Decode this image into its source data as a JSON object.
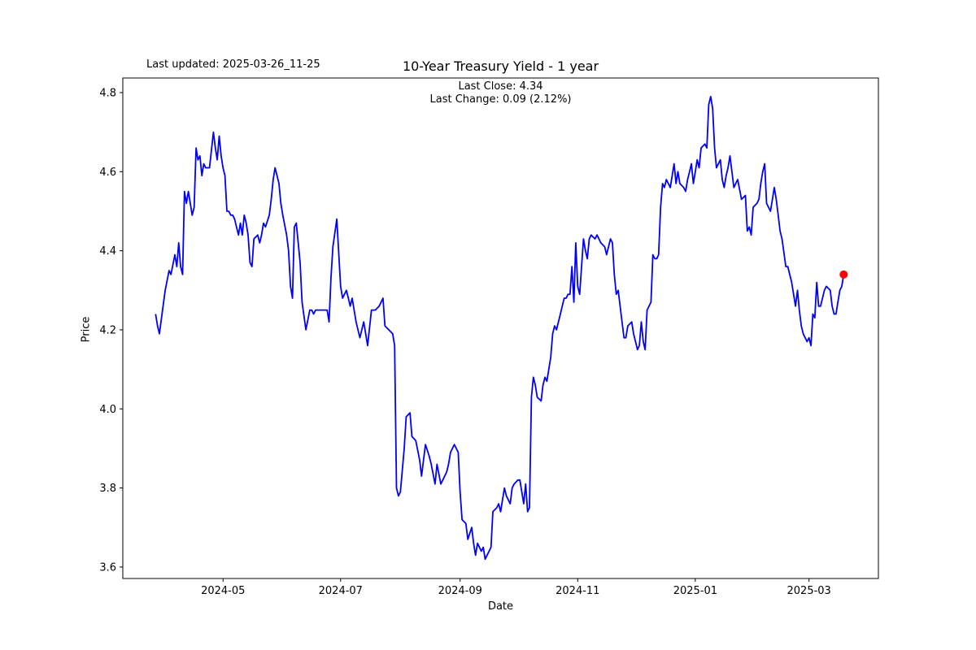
{
  "header": {
    "last_updated": "Last updated: 2025-03-26_11-25",
    "title": "10-Year Treasury Yield - 1 year",
    "subtitle_line1": "Last Close: 4.34",
    "subtitle_line2": "Last Change: 0.09 (2.12%)"
  },
  "chart_data": {
    "type": "line",
    "title": "10-Year Treasury Yield - 1 year",
    "annotation": "Last updated: 2025-03-26_11-25",
    "subtitle": [
      "Last Close: 4.34",
      "Last Change: 0.09 (2.12%)"
    ],
    "xlabel": "Date",
    "ylabel": "Price",
    "last_close": 4.34,
    "last_change": "0.09 (2.12%)",
    "line_color": "#0000ff",
    "marker_color": "#ff0000",
    "frame_color": "#000000",
    "grid": false,
    "ylim": [
      3.571,
      4.837
    ],
    "y_ticks": [
      3.6,
      3.8,
      4.0,
      4.2,
      4.4,
      4.6,
      4.8
    ],
    "y_tick_labels": [
      "3.6",
      "3.8",
      "4.0",
      "4.2",
      "4.4",
      "4.6",
      "4.8"
    ],
    "xlim_days": [
      -17,
      375
    ],
    "x_tick_days": [
      35,
      96,
      158,
      219,
      280,
      339
    ],
    "x_tick_labels": [
      "2024-05",
      "2024-07",
      "2024-09",
      "2024-11",
      "2025-01",
      "2025-03"
    ],
    "x_start_date": "2024-03-27",
    "series": [
      {
        "name": "10-Year Treasury Yield",
        "points": [
          [
            0,
            4.24
          ],
          [
            1,
            4.21
          ],
          [
            2,
            4.19
          ],
          [
            5,
            4.3
          ],
          [
            7,
            4.35
          ],
          [
            8,
            4.34
          ],
          [
            10,
            4.39
          ],
          [
            11,
            4.36
          ],
          [
            12,
            4.42
          ],
          [
            13,
            4.36
          ],
          [
            14,
            4.34
          ],
          [
            15,
            4.55
          ],
          [
            16,
            4.52
          ],
          [
            17,
            4.55
          ],
          [
            19,
            4.49
          ],
          [
            20,
            4.51
          ],
          [
            21,
            4.66
          ],
          [
            22,
            4.63
          ],
          [
            23,
            4.64
          ],
          [
            24,
            4.59
          ],
          [
            25,
            4.62
          ],
          [
            26,
            4.61
          ],
          [
            27,
            4.61
          ],
          [
            28,
            4.61
          ],
          [
            30,
            4.7
          ],
          [
            31,
            4.66
          ],
          [
            32,
            4.63
          ],
          [
            33,
            4.69
          ],
          [
            34,
            4.64
          ],
          [
            35,
            4.61
          ],
          [
            36,
            4.59
          ],
          [
            37,
            4.5
          ],
          [
            38,
            4.5
          ],
          [
            39,
            4.49
          ],
          [
            40,
            4.49
          ],
          [
            41,
            4.48
          ],
          [
            42,
            4.46
          ],
          [
            43,
            4.44
          ],
          [
            44,
            4.47
          ],
          [
            45,
            4.44
          ],
          [
            46,
            4.49
          ],
          [
            47,
            4.47
          ],
          [
            48,
            4.44
          ],
          [
            49,
            4.37
          ],
          [
            50,
            4.36
          ],
          [
            51,
            4.43
          ],
          [
            53,
            4.44
          ],
          [
            54,
            4.42
          ],
          [
            55,
            4.44
          ],
          [
            56,
            4.47
          ],
          [
            57,
            4.46
          ],
          [
            59,
            4.49
          ],
          [
            60,
            4.53
          ],
          [
            61,
            4.58
          ],
          [
            62,
            4.61
          ],
          [
            64,
            4.57
          ],
          [
            65,
            4.52
          ],
          [
            66,
            4.49
          ],
          [
            68,
            4.44
          ],
          [
            69,
            4.4
          ],
          [
            70,
            4.31
          ],
          [
            71,
            4.28
          ],
          [
            72,
            4.46
          ],
          [
            73,
            4.47
          ],
          [
            75,
            4.37
          ],
          [
            76,
            4.27
          ],
          [
            78,
            4.2
          ],
          [
            80,
            4.25
          ],
          [
            81,
            4.25
          ],
          [
            82,
            4.24
          ],
          [
            83,
            4.25
          ],
          [
            85,
            4.25
          ],
          [
            86,
            4.25
          ],
          [
            87,
            4.25
          ],
          [
            89,
            4.25
          ],
          [
            90,
            4.22
          ],
          [
            91,
            4.33
          ],
          [
            92,
            4.41
          ],
          [
            94,
            4.48
          ],
          [
            96,
            4.31
          ],
          [
            97,
            4.28
          ],
          [
            99,
            4.3
          ],
          [
            100,
            4.28
          ],
          [
            101,
            4.26
          ],
          [
            102,
            4.28
          ],
          [
            104,
            4.22
          ],
          [
            106,
            4.18
          ],
          [
            108,
            4.22
          ],
          [
            110,
            4.16
          ],
          [
            112,
            4.25
          ],
          [
            114,
            4.25
          ],
          [
            116,
            4.26
          ],
          [
            118,
            4.28
          ],
          [
            119,
            4.21
          ],
          [
            121,
            4.2
          ],
          [
            123,
            4.19
          ],
          [
            124,
            4.16
          ],
          [
            125,
            3.8
          ],
          [
            126,
            3.78
          ],
          [
            127,
            3.79
          ],
          [
            129,
            3.9
          ],
          [
            130,
            3.98
          ],
          [
            132,
            3.99
          ],
          [
            133,
            3.93
          ],
          [
            135,
            3.92
          ],
          [
            137,
            3.87
          ],
          [
            138,
            3.83
          ],
          [
            140,
            3.91
          ],
          [
            142,
            3.88
          ],
          [
            143,
            3.86
          ],
          [
            145,
            3.81
          ],
          [
            146,
            3.86
          ],
          [
            148,
            3.81
          ],
          [
            149,
            3.82
          ],
          [
            151,
            3.84
          ],
          [
            152,
            3.86
          ],
          [
            153,
            3.89
          ],
          [
            155,
            3.91
          ],
          [
            157,
            3.89
          ],
          [
            158,
            3.79
          ],
          [
            159,
            3.72
          ],
          [
            161,
            3.71
          ],
          [
            162,
            3.67
          ],
          [
            164,
            3.7
          ],
          [
            165,
            3.66
          ],
          [
            166,
            3.63
          ],
          [
            167,
            3.66
          ],
          [
            169,
            3.64
          ],
          [
            170,
            3.65
          ],
          [
            171,
            3.62
          ],
          [
            172,
            3.63
          ],
          [
            174,
            3.65
          ],
          [
            175,
            3.74
          ],
          [
            177,
            3.75
          ],
          [
            178,
            3.76
          ],
          [
            179,
            3.74
          ],
          [
            181,
            3.8
          ],
          [
            182,
            3.78
          ],
          [
            184,
            3.76
          ],
          [
            185,
            3.8
          ],
          [
            186,
            3.81
          ],
          [
            188,
            3.82
          ],
          [
            189,
            3.82
          ],
          [
            191,
            3.76
          ],
          [
            192,
            3.81
          ],
          [
            193,
            3.74
          ],
          [
            194,
            3.75
          ],
          [
            195,
            4.03
          ],
          [
            196,
            4.08
          ],
          [
            197,
            4.06
          ],
          [
            198,
            4.03
          ],
          [
            200,
            4.02
          ],
          [
            201,
            4.06
          ],
          [
            202,
            4.08
          ],
          [
            203,
            4.07
          ],
          [
            205,
            4.13
          ],
          [
            206,
            4.19
          ],
          [
            207,
            4.21
          ],
          [
            208,
            4.2
          ],
          [
            210,
            4.24
          ],
          [
            211,
            4.26
          ],
          [
            212,
            4.28
          ],
          [
            213,
            4.28
          ],
          [
            214,
            4.29
          ],
          [
            215,
            4.29
          ],
          [
            216,
            4.36
          ],
          [
            217,
            4.27
          ],
          [
            218,
            4.42
          ],
          [
            219,
            4.31
          ],
          [
            220,
            4.29
          ],
          [
            222,
            4.43
          ],
          [
            223,
            4.4
          ],
          [
            224,
            4.38
          ],
          [
            225,
            4.43
          ],
          [
            226,
            4.44
          ],
          [
            228,
            4.43
          ],
          [
            229,
            4.44
          ],
          [
            230,
            4.43
          ],
          [
            231,
            4.42
          ],
          [
            233,
            4.41
          ],
          [
            234,
            4.39
          ],
          [
            236,
            4.43
          ],
          [
            237,
            4.42
          ],
          [
            238,
            4.34
          ],
          [
            239,
            4.29
          ],
          [
            240,
            4.3
          ],
          [
            242,
            4.22
          ],
          [
            243,
            4.18
          ],
          [
            244,
            4.18
          ],
          [
            245,
            4.21
          ],
          [
            247,
            4.22
          ],
          [
            248,
            4.19
          ],
          [
            250,
            4.15
          ],
          [
            251,
            4.16
          ],
          [
            252,
            4.22
          ],
          [
            253,
            4.17
          ],
          [
            254,
            4.15
          ],
          [
            255,
            4.25
          ],
          [
            257,
            4.27
          ],
          [
            258,
            4.39
          ],
          [
            259,
            4.38
          ],
          [
            260,
            4.38
          ],
          [
            261,
            4.39
          ],
          [
            262,
            4.51
          ],
          [
            263,
            4.57
          ],
          [
            264,
            4.56
          ],
          [
            265,
            4.58
          ],
          [
            266,
            4.57
          ],
          [
            267,
            4.56
          ],
          [
            269,
            4.62
          ],
          [
            270,
            4.57
          ],
          [
            271,
            4.6
          ],
          [
            272,
            4.57
          ],
          [
            274,
            4.56
          ],
          [
            275,
            4.55
          ],
          [
            276,
            4.58
          ],
          [
            277,
            4.6
          ],
          [
            278,
            4.62
          ],
          [
            279,
            4.57
          ],
          [
            280,
            4.6
          ],
          [
            281,
            4.63
          ],
          [
            282,
            4.61
          ],
          [
            283,
            4.66
          ],
          [
            285,
            4.67
          ],
          [
            286,
            4.66
          ],
          [
            287,
            4.77
          ],
          [
            288,
            4.79
          ],
          [
            289,
            4.76
          ],
          [
            290,
            4.66
          ],
          [
            291,
            4.61
          ],
          [
            293,
            4.63
          ],
          [
            294,
            4.58
          ],
          [
            295,
            4.56
          ],
          [
            296,
            4.59
          ],
          [
            297,
            4.61
          ],
          [
            298,
            4.64
          ],
          [
            299,
            4.6
          ],
          [
            300,
            4.56
          ],
          [
            301,
            4.57
          ],
          [
            302,
            4.58
          ],
          [
            304,
            4.53
          ],
          [
            306,
            4.54
          ],
          [
            307,
            4.45
          ],
          [
            308,
            4.46
          ],
          [
            309,
            4.44
          ],
          [
            310,
            4.51
          ],
          [
            312,
            4.52
          ],
          [
            313,
            4.53
          ],
          [
            314,
            4.57
          ],
          [
            315,
            4.6
          ],
          [
            316,
            4.62
          ],
          [
            317,
            4.52
          ],
          [
            319,
            4.5
          ],
          [
            320,
            4.53
          ],
          [
            321,
            4.56
          ],
          [
            322,
            4.53
          ],
          [
            323,
            4.49
          ],
          [
            324,
            4.45
          ],
          [
            325,
            4.43
          ],
          [
            327,
            4.36
          ],
          [
            328,
            4.36
          ],
          [
            330,
            4.32
          ],
          [
            331,
            4.29
          ],
          [
            332,
            4.26
          ],
          [
            333,
            4.3
          ],
          [
            334,
            4.25
          ],
          [
            335,
            4.21
          ],
          [
            336,
            4.19
          ],
          [
            338,
            4.17
          ],
          [
            339,
            4.18
          ],
          [
            340,
            4.16
          ],
          [
            341,
            4.24
          ],
          [
            342,
            4.23
          ],
          [
            343,
            4.32
          ],
          [
            344,
            4.26
          ],
          [
            345,
            4.26
          ],
          [
            347,
            4.3
          ],
          [
            348,
            4.31
          ],
          [
            350,
            4.3
          ],
          [
            351,
            4.26
          ],
          [
            352,
            4.24
          ],
          [
            353,
            4.24
          ],
          [
            354,
            4.27
          ],
          [
            355,
            4.3
          ],
          [
            356,
            4.31
          ],
          [
            357,
            4.34
          ]
        ]
      }
    ]
  }
}
